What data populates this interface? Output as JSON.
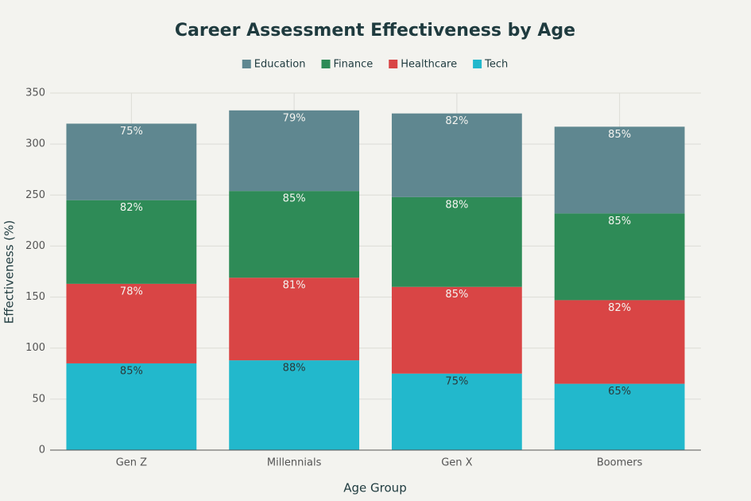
{
  "chart_data": {
    "type": "stacked_bar",
    "title": "Career Assessment Effectiveness by Age",
    "x_label": "Age Group",
    "y_label": "Effectiveness (%)",
    "categories": [
      "Gen Z",
      "Millennials",
      "Gen X",
      "Boomers"
    ],
    "series": [
      {
        "name": "Tech",
        "color": "#22b8cc",
        "values": [
          85,
          88,
          75,
          65
        ],
        "value_labels": [
          "85%",
          "88%",
          "75%",
          "65%"
        ]
      },
      {
        "name": "Healthcare",
        "color": "#d94545",
        "values": [
          78,
          81,
          85,
          82
        ],
        "value_labels": [
          "78%",
          "81%",
          "85%",
          "82%"
        ]
      },
      {
        "name": "Finance",
        "color": "#2e8b57",
        "values": [
          82,
          85,
          88,
          85
        ],
        "value_labels": [
          "82%",
          "85%",
          "88%",
          "85%"
        ]
      },
      {
        "name": "Education",
        "color": "#5f8790",
        "values": [
          75,
          79,
          82,
          85
        ],
        "value_labels": [
          "75%",
          "79%",
          "82%",
          "85%"
        ]
      }
    ],
    "ylim": [
      0,
      350
    ],
    "yticks": [
      0,
      50,
      100,
      150,
      200,
      250,
      300,
      350
    ],
    "grid": true,
    "legend_position": "top"
  }
}
